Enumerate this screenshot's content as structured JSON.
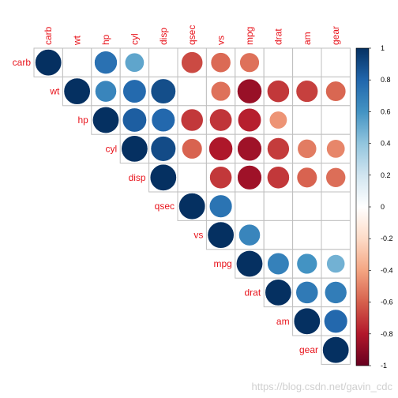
{
  "chart_data": {
    "type": "heatmap",
    "variables": [
      "carb",
      "wt",
      "hp",
      "cyl",
      "disp",
      "qsec",
      "vs",
      "mpg",
      "drat",
      "am",
      "gear"
    ],
    "matrix": [
      [
        1,
        0,
        0.75,
        0.53,
        0,
        -0.66,
        -0.57,
        -0.55,
        0,
        0,
        0
      ],
      [
        null,
        1,
        0.66,
        0.78,
        0.89,
        0,
        -0.55,
        -0.87,
        -0.71,
        -0.69,
        -0.58
      ],
      [
        null,
        null,
        1,
        0.83,
        0.79,
        -0.71,
        -0.72,
        -0.78,
        -0.45,
        0,
        0
      ],
      [
        null,
        null,
        null,
        1,
        0.9,
        -0.59,
        -0.81,
        -0.85,
        -0.7,
        -0.52,
        -0.49
      ],
      [
        null,
        null,
        null,
        null,
        1,
        0,
        -0.71,
        -0.85,
        -0.71,
        -0.59,
        -0.56
      ],
      [
        null,
        null,
        null,
        null,
        null,
        1,
        0.74,
        0,
        0,
        0,
        0
      ],
      [
        null,
        null,
        null,
        null,
        null,
        null,
        1,
        0.66,
        0,
        0,
        0
      ],
      [
        null,
        null,
        null,
        null,
        null,
        null,
        null,
        1,
        0.68,
        0.6,
        0.48
      ],
      [
        null,
        null,
        null,
        null,
        null,
        null,
        null,
        null,
        1,
        0.71,
        0.7
      ],
      [
        null,
        null,
        null,
        null,
        null,
        null,
        null,
        null,
        null,
        1,
        0.79
      ],
      [
        null,
        null,
        null,
        null,
        null,
        null,
        null,
        null,
        null,
        null,
        1
      ]
    ],
    "legend": {
      "placement": "right",
      "range": [
        -1,
        1
      ],
      "ticks": [
        "1",
        "0.8",
        "0.6",
        "0.4",
        "0.2",
        "0",
        "-0.2",
        "-0.4",
        "-0.6",
        "-0.8",
        "-1"
      ]
    },
    "colors": {
      "label": "#e8141c",
      "grid": "#bfbfbf",
      "palette": [
        "#67001f",
        "#b2182b",
        "#d6604d",
        "#f4a582",
        "#fddbc7",
        "#ffffff",
        "#d1e5f0",
        "#92c5de",
        "#4393c3",
        "#2166ac",
        "#053061"
      ]
    }
  },
  "watermark": "https://blog.csdn.net/gavin_cdc"
}
